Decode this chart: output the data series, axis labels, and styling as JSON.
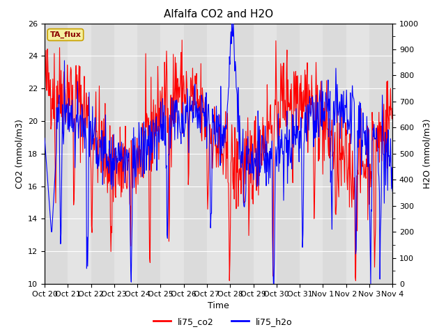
{
  "title": "Alfalfa CO2 and H2O",
  "ylabel_left": "CO2 (mmol/m3)",
  "ylabel_right": "H2O (mmol/m3)",
  "xlabel": "Time",
  "ylim_left": [
    10,
    26
  ],
  "ylim_right": [
    0,
    1000
  ],
  "yticks_left": [
    10,
    12,
    14,
    16,
    18,
    20,
    22,
    24,
    26
  ],
  "yticks_right": [
    0,
    100,
    200,
    300,
    400,
    500,
    600,
    700,
    800,
    900,
    1000
  ],
  "xtick_labels": [
    "Oct 20",
    "Oct 21",
    "Oct 22",
    "Oct 23",
    "Oct 24",
    "Oct 25",
    "Oct 26",
    "Oct 27",
    "Oct 28",
    "Oct 29",
    "Oct 30",
    "Oct 31",
    "Nov 1",
    "Nov 2",
    "Nov 3",
    "Nov 4"
  ],
  "legend_labels": [
    "li75_co2",
    "li75_h2o"
  ],
  "legend_colors": [
    "red",
    "blue"
  ],
  "tag_label": "TA_flux",
  "tag_facecolor": "#f5f0a0",
  "tag_edgecolor": "#c8a000",
  "background_color": "#e0e0e0",
  "figure_facecolor": "#ffffff",
  "grid_color": "#ffffff",
  "co2_color": "red",
  "h2o_color": "blue",
  "linewidth": 0.8,
  "title_fontsize": 11,
  "axis_fontsize": 9,
  "tick_fontsize": 8,
  "legend_fontsize": 9
}
